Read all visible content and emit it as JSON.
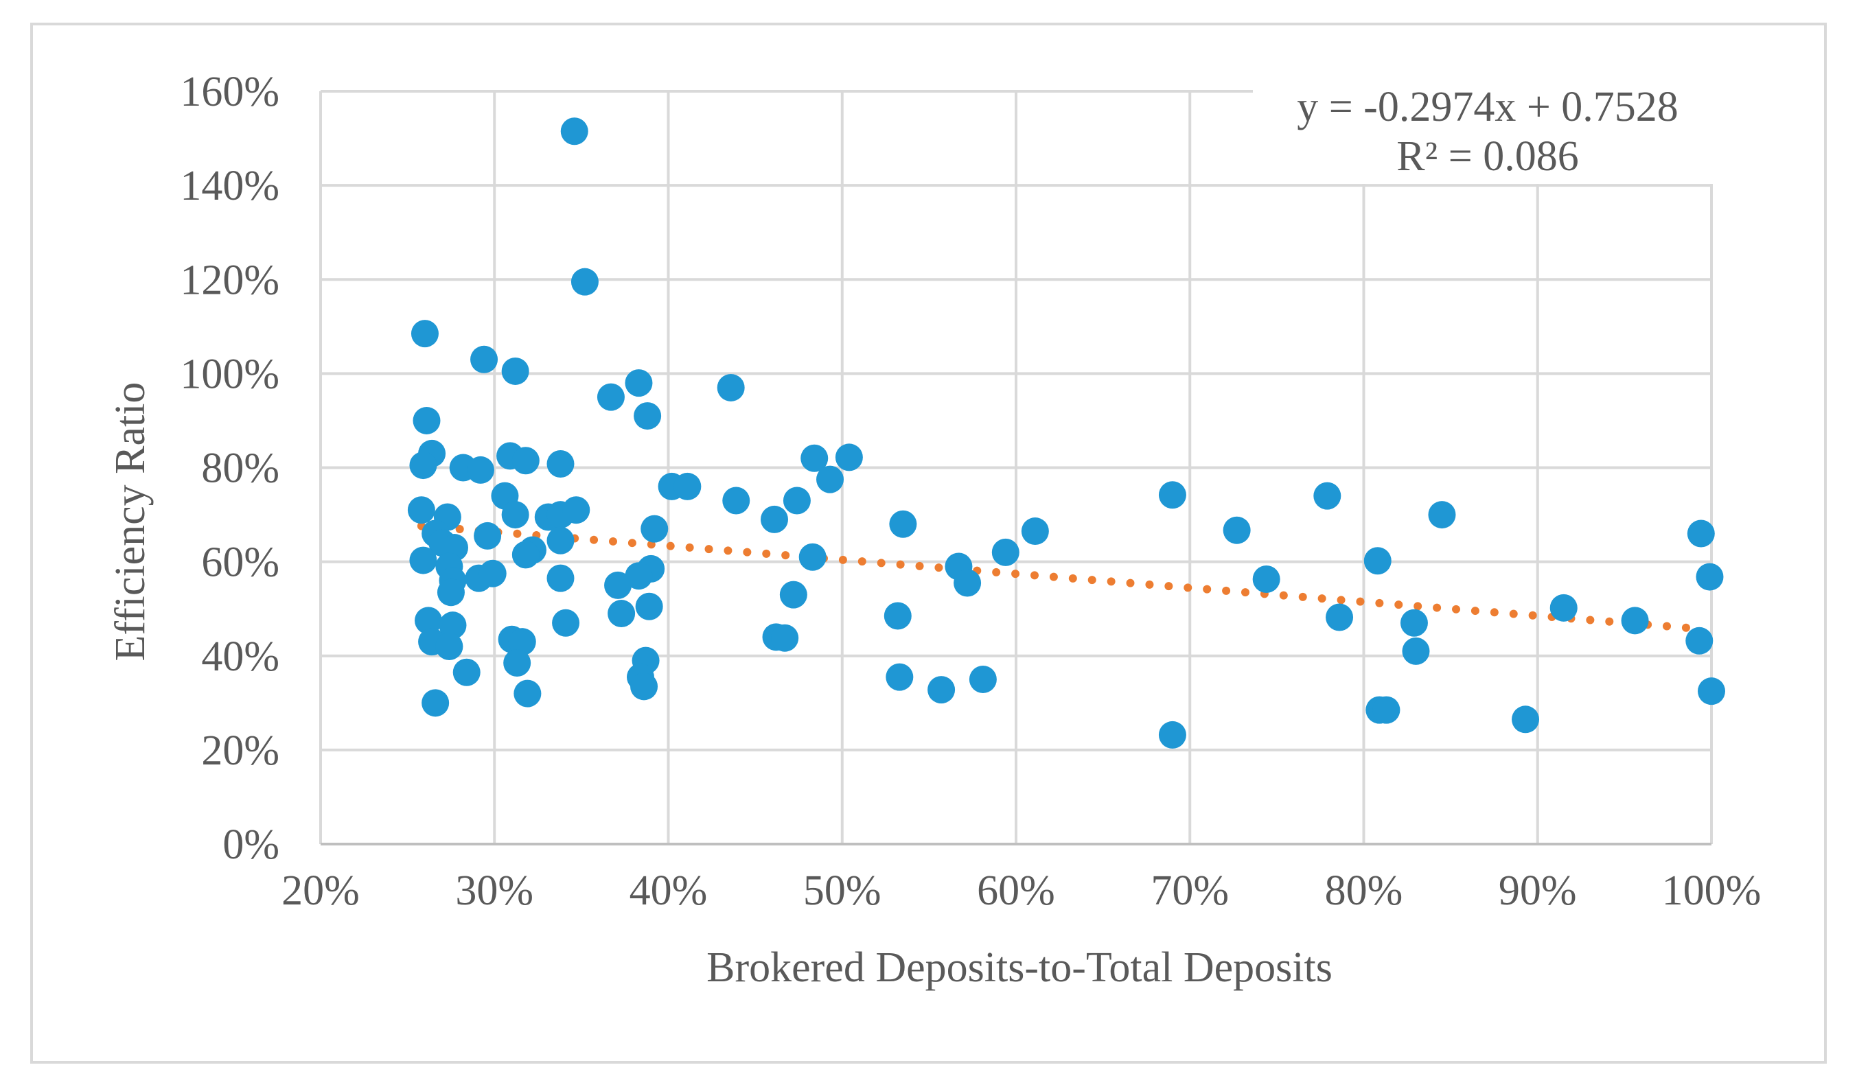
{
  "chart_data": {
    "type": "scatter",
    "title": "",
    "xlabel": "Brokered Deposits-to-Total Deposits",
    "ylabel": "Efficiency Ratio",
    "xlim": [
      0.2,
      1.0
    ],
    "ylim": [
      0,
      1.6
    ],
    "x_ticks": [
      0.2,
      0.3,
      0.4,
      0.5,
      0.6,
      0.7,
      0.8,
      0.9,
      1.0
    ],
    "x_tick_labels": [
      "20%",
      "30%",
      "40%",
      "50%",
      "60%",
      "70%",
      "80%",
      "90%",
      "100%"
    ],
    "y_ticks": [
      0,
      0.2,
      0.4,
      0.6,
      0.8,
      1.0,
      1.2,
      1.4,
      1.6
    ],
    "y_tick_labels": [
      "0%",
      "20%",
      "40%",
      "60%",
      "80%",
      "100%",
      "120%",
      "140%",
      "160%"
    ],
    "grid": true,
    "series": [
      {
        "name": "Efficiency Ratio",
        "color": "#1f97d4",
        "points": [
          [
            0.346,
            1.515
          ],
          [
            0.352,
            1.195
          ],
          [
            0.26,
            1.085
          ],
          [
            0.294,
            1.03
          ],
          [
            0.312,
            1.005
          ],
          [
            0.261,
            0.9
          ],
          [
            0.264,
            0.83
          ],
          [
            0.259,
            0.805
          ],
          [
            0.282,
            0.8
          ],
          [
            0.292,
            0.795
          ],
          [
            0.309,
            0.825
          ],
          [
            0.318,
            0.815
          ],
          [
            0.338,
            0.808
          ],
          [
            0.306,
            0.74
          ],
          [
            0.312,
            0.7
          ],
          [
            0.258,
            0.71
          ],
          [
            0.273,
            0.695
          ],
          [
            0.266,
            0.66
          ],
          [
            0.27,
            0.64
          ],
          [
            0.277,
            0.63
          ],
          [
            0.296,
            0.655
          ],
          [
            0.331,
            0.695
          ],
          [
            0.338,
            0.7
          ],
          [
            0.347,
            0.71
          ],
          [
            0.338,
            0.645
          ],
          [
            0.322,
            0.625
          ],
          [
            0.318,
            0.615
          ],
          [
            0.259,
            0.603
          ],
          [
            0.274,
            0.59
          ],
          [
            0.276,
            0.56
          ],
          [
            0.291,
            0.565
          ],
          [
            0.299,
            0.575
          ],
          [
            0.275,
            0.535
          ],
          [
            0.338,
            0.565
          ],
          [
            0.262,
            0.475
          ],
          [
            0.276,
            0.465
          ],
          [
            0.264,
            0.43
          ],
          [
            0.274,
            0.42
          ],
          [
            0.284,
            0.365
          ],
          [
            0.266,
            0.3
          ],
          [
            0.31,
            0.435
          ],
          [
            0.316,
            0.43
          ],
          [
            0.313,
            0.385
          ],
          [
            0.319,
            0.32
          ],
          [
            0.341,
            0.47
          ],
          [
            0.367,
            0.95
          ],
          [
            0.383,
            0.98
          ],
          [
            0.388,
            0.91
          ],
          [
            0.436,
            0.97
          ],
          [
            0.402,
            0.76
          ],
          [
            0.411,
            0.76
          ],
          [
            0.439,
            0.73
          ],
          [
            0.392,
            0.67
          ],
          [
            0.39,
            0.585
          ],
          [
            0.371,
            0.55
          ],
          [
            0.383,
            0.57
          ],
          [
            0.373,
            0.49
          ],
          [
            0.389,
            0.505
          ],
          [
            0.387,
            0.39
          ],
          [
            0.384,
            0.355
          ],
          [
            0.386,
            0.335
          ],
          [
            0.484,
            0.82
          ],
          [
            0.504,
            0.822
          ],
          [
            0.493,
            0.775
          ],
          [
            0.474,
            0.73
          ],
          [
            0.461,
            0.69
          ],
          [
            0.483,
            0.61
          ],
          [
            0.472,
            0.53
          ],
          [
            0.462,
            0.44
          ],
          [
            0.467,
            0.438
          ],
          [
            0.535,
            0.68
          ],
          [
            0.567,
            0.59
          ],
          [
            0.572,
            0.555
          ],
          [
            0.594,
            0.62
          ],
          [
            0.611,
            0.665
          ],
          [
            0.532,
            0.485
          ],
          [
            0.533,
            0.355
          ],
          [
            0.557,
            0.328
          ],
          [
            0.581,
            0.35
          ],
          [
            0.69,
            0.742
          ],
          [
            0.727,
            0.667
          ],
          [
            0.744,
            0.563
          ],
          [
            0.779,
            0.74
          ],
          [
            0.786,
            0.482
          ],
          [
            0.69,
            0.232
          ],
          [
            0.808,
            0.602
          ],
          [
            0.845,
            0.7
          ],
          [
            0.829,
            0.47
          ],
          [
            0.83,
            0.41
          ],
          [
            0.809,
            0.285
          ],
          [
            0.813,
            0.285
          ],
          [
            0.893,
            0.265
          ],
          [
            0.915,
            0.502
          ],
          [
            0.956,
            0.475
          ],
          [
            0.994,
            0.66
          ],
          [
            0.999,
            0.568
          ],
          [
            0.993,
            0.432
          ],
          [
            1.0,
            0.325
          ]
        ]
      }
    ],
    "trendline": {
      "type": "linear",
      "style": "dotted",
      "color": "#ed7d31",
      "slope": -0.2974,
      "intercept": 0.7528,
      "x_range": [
        0.258,
        0.995
      ],
      "equation": "y = -0.2974x + 0.7528",
      "r_squared": "R² = 0.086"
    },
    "annotation_position": "top-right"
  }
}
